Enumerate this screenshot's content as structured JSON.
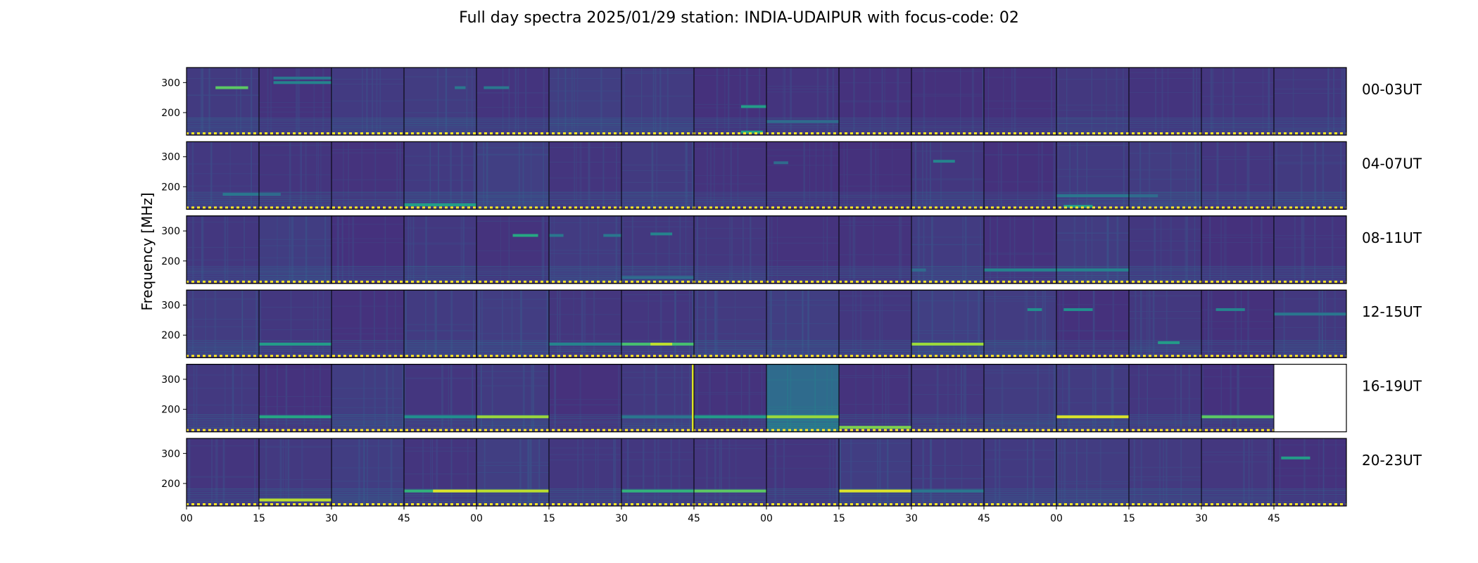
{
  "chart_data": {
    "type": "heatmap",
    "title": "Full day spectra 2025/01/29 station: INDIA-UDAIPUR with focus-code: 02",
    "ylabel": "Frequency [MHz]",
    "y_ticks": [
      200,
      300
    ],
    "ylim": [
      125,
      350
    ],
    "x_tick_labels": [
      "00",
      "15",
      "30",
      "45",
      "00",
      "15",
      "30",
      "45",
      "00",
      "15",
      "30",
      "45",
      "00",
      "15",
      "30",
      "45"
    ],
    "panels_per_row": 16,
    "panel_minutes": 15,
    "colormap": "viridis",
    "rows": [
      {
        "label": "00-03UT",
        "panels": 16,
        "features": [
          {
            "panel": 0,
            "freq": 283,
            "level": 0.75,
            "span": [
              0.4,
              0.85
            ]
          },
          {
            "panel": 1,
            "freq": 300,
            "level": 0.45,
            "span": [
              0.2,
              1.0
            ]
          },
          {
            "panel": 1,
            "freq": 315,
            "level": 0.4,
            "span": [
              0.2,
              1.0
            ]
          },
          {
            "panel": 3,
            "freq": 283,
            "level": 0.4,
            "span": [
              0.7,
              0.85
            ]
          },
          {
            "panel": 4,
            "freq": 283,
            "level": 0.4,
            "span": [
              0.1,
              0.45
            ]
          },
          {
            "panel": 7,
            "freq": 220,
            "level": 0.55,
            "span": [
              0.65,
              1.0
            ]
          },
          {
            "panel": 7,
            "freq": 135,
            "level": 0.6,
            "span": [
              0.65,
              0.95
            ]
          },
          {
            "panel": 8,
            "freq": 170,
            "level": 0.35,
            "span": [
              0.0,
              1.0
            ]
          }
        ]
      },
      {
        "label": "04-07UT",
        "panels": 16,
        "features": [
          {
            "panel": 0,
            "freq": 175,
            "level": 0.4,
            "span": [
              0.5,
              1.0
            ]
          },
          {
            "panel": 1,
            "freq": 175,
            "level": 0.35,
            "span": [
              0.0,
              0.3
            ]
          },
          {
            "panel": 3,
            "freq": 140,
            "level": 0.55,
            "span": [
              0.0,
              1.0
            ]
          },
          {
            "panel": 8,
            "freq": 280,
            "level": 0.35,
            "span": [
              0.1,
              0.3
            ]
          },
          {
            "panel": 10,
            "freq": 285,
            "level": 0.45,
            "span": [
              0.3,
              0.6
            ]
          },
          {
            "panel": 12,
            "freq": 135,
            "level": 0.55,
            "span": [
              0.1,
              0.5
            ]
          },
          {
            "panel": 12,
            "freq": 170,
            "level": 0.4,
            "span": [
              0.0,
              1.0
            ]
          },
          {
            "panel": 13,
            "freq": 170,
            "level": 0.35,
            "span": [
              0.0,
              0.4
            ]
          }
        ]
      },
      {
        "label": "08-11UT",
        "panels": 16,
        "features": [
          {
            "panel": 4,
            "freq": 285,
            "level": 0.6,
            "span": [
              0.5,
              0.85
            ]
          },
          {
            "panel": 5,
            "freq": 285,
            "level": 0.4,
            "span": [
              0.0,
              0.2
            ]
          },
          {
            "panel": 5,
            "freq": 285,
            "level": 0.4,
            "span": [
              0.75,
              1.0
            ]
          },
          {
            "panel": 6,
            "freq": 290,
            "level": 0.45,
            "span": [
              0.4,
              0.7
            ]
          },
          {
            "panel": 6,
            "freq": 145,
            "level": 0.35,
            "span": [
              0.0,
              1.0
            ]
          },
          {
            "panel": 10,
            "freq": 170,
            "level": 0.35,
            "span": [
              0.0,
              0.2
            ]
          },
          {
            "panel": 11,
            "freq": 170,
            "level": 0.45,
            "span": [
              0.0,
              1.0
            ]
          },
          {
            "panel": 12,
            "freq": 170,
            "level": 0.45,
            "span": [
              0.0,
              1.0
            ]
          }
        ]
      },
      {
        "label": "12-15UT",
        "panels": 16,
        "features": [
          {
            "panel": 1,
            "freq": 170,
            "level": 0.55,
            "span": [
              0.0,
              1.0
            ]
          },
          {
            "panel": 5,
            "freq": 170,
            "level": 0.45,
            "span": [
              0.0,
              1.0
            ]
          },
          {
            "panel": 6,
            "freq": 170,
            "level": 0.7,
            "span": [
              0.0,
              1.0
            ]
          },
          {
            "panel": 6,
            "freq": 170,
            "level": 0.9,
            "span": [
              0.4,
              0.7
            ]
          },
          {
            "panel": 10,
            "freq": 170,
            "level": 0.85,
            "span": [
              0.0,
              1.0
            ]
          },
          {
            "panel": 11,
            "freq": 285,
            "level": 0.5,
            "span": [
              0.6,
              0.8
            ]
          },
          {
            "panel": 12,
            "freq": 285,
            "level": 0.5,
            "span": [
              0.1,
              0.5
            ]
          },
          {
            "panel": 13,
            "freq": 175,
            "level": 0.55,
            "span": [
              0.4,
              0.7
            ]
          },
          {
            "panel": 14,
            "freq": 285,
            "level": 0.45,
            "span": [
              0.2,
              0.6
            ]
          },
          {
            "panel": 15,
            "freq": 270,
            "level": 0.4,
            "span": [
              0.0,
              1.0
            ]
          }
        ]
      },
      {
        "label": "16-19UT",
        "panels": 15,
        "features": [
          {
            "panel": 1,
            "freq": 175,
            "level": 0.6,
            "span": [
              0.0,
              1.0
            ]
          },
          {
            "panel": 3,
            "freq": 175,
            "level": 0.5,
            "span": [
              0.0,
              1.0
            ]
          },
          {
            "panel": 4,
            "freq": 175,
            "level": 0.85,
            "span": [
              0.0,
              1.0
            ]
          },
          {
            "panel": 6,
            "freq": 175,
            "level": 0.4,
            "span": [
              0.0,
              1.0
            ]
          },
          {
            "panel": 7,
            "freq": 175,
            "level": 0.55,
            "span": [
              0.0,
              1.0
            ]
          },
          {
            "panel": 8,
            "freq": 175,
            "level": 0.85,
            "span": [
              0.0,
              1.0
            ]
          },
          {
            "panel": 9,
            "freq": 140,
            "level": 0.8,
            "span": [
              0.0,
              1.0
            ]
          },
          {
            "panel": 12,
            "freq": 175,
            "level": 0.95,
            "span": [
              0.0,
              1.0
            ]
          },
          {
            "panel": 14,
            "freq": 175,
            "level": 0.75,
            "span": [
              0.0,
              1.0
            ]
          }
        ]
      },
      {
        "label": "20-23UT",
        "panels": 16,
        "features": [
          {
            "panel": 1,
            "freq": 145,
            "level": 0.9,
            "span": [
              0.0,
              1.0
            ]
          },
          {
            "panel": 3,
            "freq": 175,
            "level": 0.65,
            "span": [
              0.0,
              1.0
            ]
          },
          {
            "panel": 3,
            "freq": 175,
            "level": 0.95,
            "span": [
              0.4,
              1.0
            ]
          },
          {
            "panel": 4,
            "freq": 175,
            "level": 0.9,
            "span": [
              0.0,
              1.0
            ]
          },
          {
            "panel": 6,
            "freq": 175,
            "level": 0.65,
            "span": [
              0.0,
              1.0
            ]
          },
          {
            "panel": 7,
            "freq": 175,
            "level": 0.75,
            "span": [
              0.0,
              1.0
            ]
          },
          {
            "panel": 9,
            "freq": 175,
            "level": 0.95,
            "span": [
              0.0,
              1.0
            ]
          },
          {
            "panel": 10,
            "freq": 175,
            "level": 0.4,
            "span": [
              0.0,
              1.0
            ]
          },
          {
            "panel": 15,
            "freq": 285,
            "level": 0.55,
            "span": [
              0.1,
              0.5
            ]
          }
        ]
      }
    ],
    "special_panels": [
      {
        "row": 4,
        "panel": 6,
        "kind": "vertical_burst",
        "level": 0.95,
        "at": 1.0
      },
      {
        "row": 4,
        "panel": 8,
        "kind": "elevated_background",
        "level": 0.35
      }
    ]
  }
}
